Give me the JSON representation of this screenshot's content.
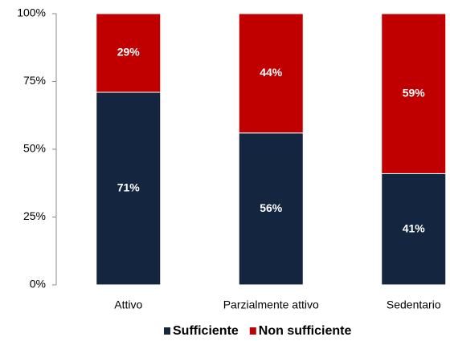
{
  "chart_data": {
    "type": "stacked_bar",
    "categories": [
      "Attivo",
      "Parzialmente attivo",
      "Sedentario"
    ],
    "series": [
      {
        "name": "Sufficiente",
        "color": "#13253f",
        "values": [
          71,
          56,
          41
        ],
        "value_labels": [
          "71%",
          "56%",
          "41%"
        ]
      },
      {
        "name": "Non sufficiente",
        "color": "#c00000",
        "values": [
          29,
          44,
          59
        ],
        "value_labels": [
          "29%",
          "44%",
          "59%"
        ]
      }
    ],
    "ylim": [
      0,
      100
    ],
    "yticks": [
      {
        "value": 0,
        "label": "0%"
      },
      {
        "value": 25,
        "label": "25%"
      },
      {
        "value": 50,
        "label": "50%"
      },
      {
        "value": 75,
        "label": "75%"
      },
      {
        "value": 100,
        "label": "100%"
      }
    ],
    "grid": false,
    "legend": "bottom"
  }
}
